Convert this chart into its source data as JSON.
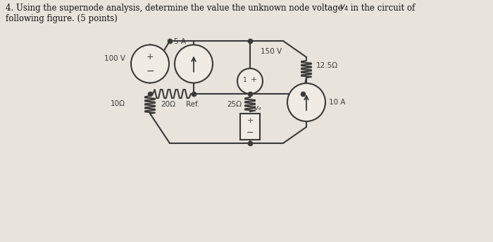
{
  "bg_color": "#e8e4dc",
  "wire_color": "#3a3a3a",
  "source_100V": "100 V",
  "source_5A": "5 A",
  "source_150V": "150 V",
  "res_12p5": "12.5Ω",
  "res_20": "20Ω",
  "res_10": "10Ω",
  "res_25": "25Ω",
  "source_10A": "10 A",
  "label_ref": "Ref.",
  "label_va": "v₄",
  "title_main": "4. Using the supernode analysis, determine the value the unknown node voltage ",
  "title_v": "v",
  "title_sub": "4",
  "title_end": " in the circuit of",
  "title_line2": "following figure. (5 points)",
  "circ_fill": "#f0ece4",
  "circ_edge": "#3a3a3a"
}
